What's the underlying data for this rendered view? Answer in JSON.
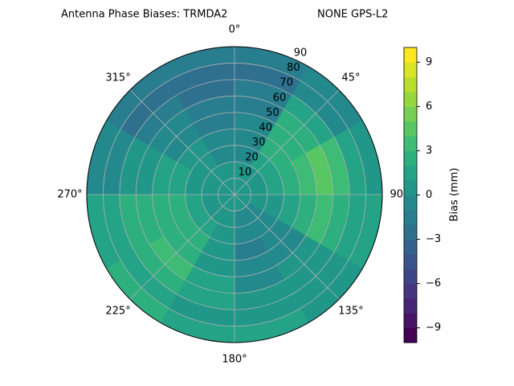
{
  "chart_data": {
    "type": "polar-contour",
    "title": "Antenna Phase Biases: TRMDA2",
    "subtitle": "NONE GPS-L2",
    "colorbar_label": "Bias (mm)",
    "colormap": "viridis",
    "rlim": [
      0,
      90
    ],
    "rticks": [
      10,
      20,
      30,
      40,
      50,
      60,
      70,
      80,
      90
    ],
    "thetaticks": [
      {
        "value": 0,
        "label": "0°"
      },
      {
        "value": 45,
        "label": "45°"
      },
      {
        "value": 90,
        "label": "90°"
      },
      {
        "value": 135,
        "label": "135°"
      },
      {
        "value": 180,
        "label": "180°"
      },
      {
        "value": 225,
        "label": "225°"
      },
      {
        "value": 270,
        "label": "270°"
      },
      {
        "value": 315,
        "label": "315°"
      }
    ],
    "clim": [
      -10,
      10
    ],
    "cticks": [
      {
        "value": -9,
        "label": "−9"
      },
      {
        "value": -6,
        "label": "−6"
      },
      {
        "value": -3,
        "label": "−3"
      },
      0,
      3,
      6,
      9
    ],
    "levels": [
      -10,
      -9,
      -8,
      -7,
      -6,
      -5,
      -4,
      -3,
      -2,
      -1,
      0,
      1,
      2,
      3,
      4,
      5,
      6,
      7,
      8,
      9,
      10
    ],
    "radial_bins": [
      0,
      10,
      20,
      30,
      40,
      50,
      60,
      70,
      80,
      90
    ],
    "azimuth_bins": [
      0,
      30,
      60,
      90,
      120,
      150,
      180,
      210,
      240,
      270,
      300,
      330,
      360
    ],
    "grid": true,
    "values": [
      [
        0,
        0,
        0,
        0,
        0,
        0,
        0,
        0,
        0,
        0,
        0,
        0
      ],
      [
        0,
        0.5,
        0.5,
        0,
        -0.5,
        -0.5,
        0,
        0.5,
        0.5,
        0,
        0,
        0
      ],
      [
        -0.5,
        1,
        1,
        0,
        -1,
        -1,
        0,
        1,
        1,
        0.5,
        0,
        -0.5
      ],
      [
        -1,
        2,
        2.5,
        1,
        -1,
        -1.5,
        0,
        2,
        2,
        1,
        0,
        -1
      ],
      [
        -1,
        2.5,
        3.5,
        2,
        -0.5,
        -1,
        0.5,
        2.5,
        2.5,
        1,
        -0.5,
        -1.5
      ],
      [
        -1.5,
        2,
        4,
        3,
        0,
        -0.5,
        1,
        3,
        2.5,
        0.5,
        -1,
        -2
      ],
      [
        -2,
        1,
        3,
        2.5,
        0.5,
        0,
        1,
        2.5,
        2,
        0,
        -2,
        -2.5
      ],
      [
        -2.5,
        -1,
        1,
        1,
        0,
        0,
        0.5,
        1.5,
        1,
        -1,
        -3,
        -3
      ],
      [
        -1.5,
        -0.5,
        0.5,
        1,
        0.5,
        1,
        1.5,
        2,
        1.5,
        -0.5,
        -2,
        -1.5
      ]
    ]
  }
}
